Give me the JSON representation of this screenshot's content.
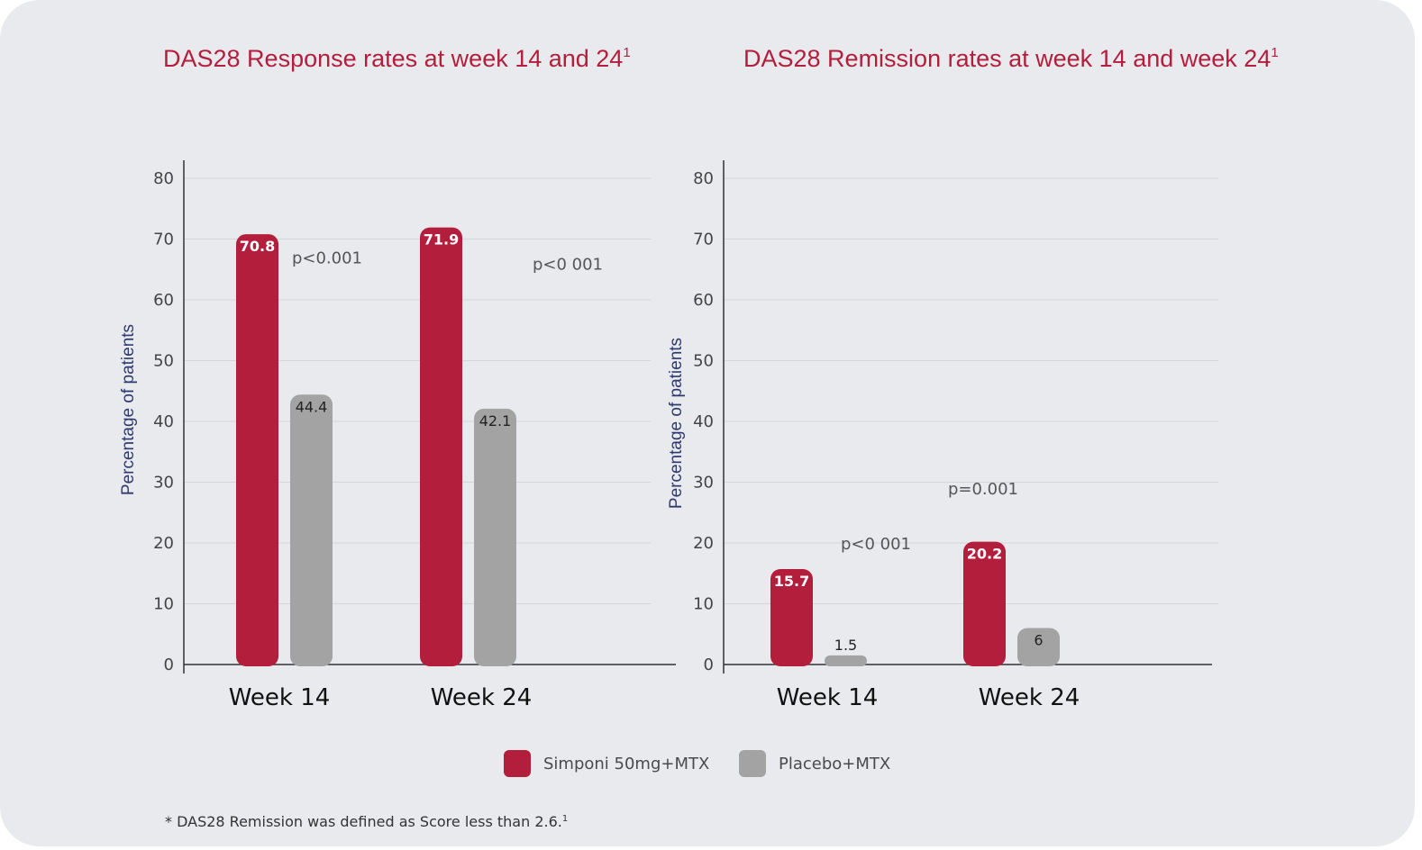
{
  "colors": {
    "simponi": "#b31e3c",
    "placebo": "#a3a3a3",
    "title": "#b31e3c",
    "axis_label": "#2e3a6e"
  },
  "chart_data": [
    {
      "type": "bar",
      "title": "DAS28 Response rates at week 14 and 24",
      "title_sup": "1",
      "xlabel": "",
      "ylabel": "Percentage of patients",
      "ylim": [
        0,
        80
      ],
      "yticks": [
        0,
        10,
        20,
        30,
        40,
        50,
        60,
        70,
        80
      ],
      "grid": true,
      "categories": [
        "Week 14",
        "Week 24"
      ],
      "series": [
        {
          "name": "Simponi 50mg+MTX",
          "values": [
            70.8,
            71.9
          ],
          "labels": [
            "70.8",
            "71.9"
          ]
        },
        {
          "name": "Placebo+MTX",
          "values": [
            44.4,
            42.1
          ],
          "labels": [
            "44.4",
            "42.1"
          ]
        }
      ],
      "annotations": [
        {
          "text": "p<0.001",
          "x": "Week 14",
          "y": 66
        },
        {
          "text": "p<0 001",
          "x": "Week 24",
          "y": 65
        }
      ]
    },
    {
      "type": "bar",
      "title": "DAS28 Remission rates at week 14 and week 24",
      "title_sup": "1",
      "xlabel": "",
      "ylabel": "Percentage of patients",
      "ylim": [
        0,
        80
      ],
      "yticks": [
        0,
        10,
        20,
        30,
        40,
        50,
        60,
        70,
        80
      ],
      "grid": true,
      "categories": [
        "Week 14",
        "Week 24"
      ],
      "series": [
        {
          "name": "Simponi 50mg+MTX",
          "values": [
            15.7,
            20.2
          ],
          "labels": [
            "15.7",
            "20.2"
          ]
        },
        {
          "name": "Placebo+MTX",
          "values": [
            1.5,
            6
          ],
          "labels": [
            "1.5",
            "6"
          ]
        }
      ],
      "annotations": [
        {
          "text": "p<0 001",
          "x": "Week 14",
          "y": 19
        },
        {
          "text": "p=0.001",
          "x": "Week 24",
          "y": 28
        }
      ]
    }
  ],
  "legend": {
    "items": [
      {
        "label": "Simponi 50mg+MTX"
      },
      {
        "label": "Placebo+MTX"
      }
    ]
  },
  "footnote": {
    "text": "* DAS28 Remission was defined as Score less than 2.6.",
    "sup": "1"
  }
}
